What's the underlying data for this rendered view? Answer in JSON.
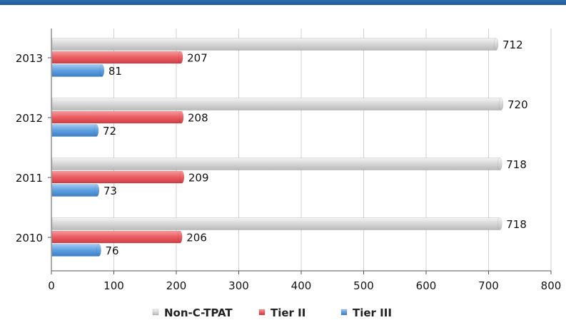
{
  "chart_data": {
    "type": "bar",
    "orientation": "horizontal",
    "categories": [
      "2013",
      "2012",
      "2011",
      "2010"
    ],
    "series": [
      {
        "name": "Non-C-TPAT",
        "values": [
          712,
          720,
          718,
          718
        ],
        "color": "#d4d4d4"
      },
      {
        "name": "Tier II",
        "values": [
          207,
          208,
          209,
          206
        ],
        "color": "#e85a5f"
      },
      {
        "name": "Tier III",
        "values": [
          81,
          72,
          73,
          76
        ],
        "color": "#5a9ee0"
      }
    ],
    "title": "",
    "xlabel": "",
    "ylabel": "",
    "xlim": [
      0,
      800
    ],
    "xticks": [
      "0",
      "100",
      "200",
      "300",
      "400",
      "500",
      "600",
      "700",
      "800"
    ],
    "grid": true,
    "legend_position": "bottom"
  }
}
